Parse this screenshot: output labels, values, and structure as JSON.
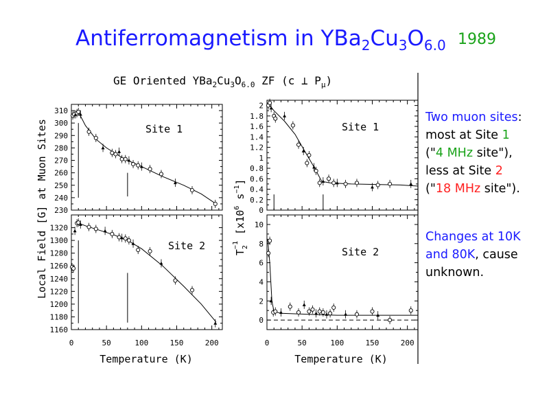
{
  "slide": {
    "title_main": "Antiferromagnetism in YBa",
    "title_sub1": "2",
    "title_mid1": "Cu",
    "title_sub2": "3",
    "title_mid2": "O",
    "title_sub3": "6.0",
    "year": "1989"
  },
  "notes": {
    "p1_a": "Two muon sites",
    "p1_b": ":",
    "p1_c": "most at Site ",
    "p1_d": "1",
    "p1_e": "(\"",
    "p1_f": "4 MHz",
    "p1_g": " site\"),",
    "p1_h": "less at Site ",
    "p1_i": "2",
    "p1_j": "(\"",
    "p1_k": "18 MHz",
    "p1_l": " site\").",
    "p2_a": "Changes at 10K",
    "p2_b": "and 80K",
    "p2_c": ", cause",
    "p2_d": "unknown."
  },
  "figure": {
    "title_a": "GE Oriented YBa",
    "title_b": "2",
    "title_c": "Cu",
    "title_d": "3",
    "title_e": "O",
    "title_f": "6.0",
    "title_g": " ZF (c ⊥ P",
    "title_h": "μ",
    "title_i": ")",
    "left_ylabel": "Local Field [G] at Muon Sites",
    "right_ylabel_a": "T",
    "right_ylabel_b": "2",
    "right_ylabel_c": "−1",
    "right_ylabel_d": " [x10",
    "right_ylabel_e": "6",
    "right_ylabel_f": " s",
    "right_ylabel_g": "−1",
    "right_ylabel_h": "]",
    "xlabel": "Temperature (K)"
  },
  "chart_data": [
    {
      "type": "scatter",
      "id": "field-site1",
      "label": "Site 1",
      "xlim": [
        0,
        215
      ],
      "ylim": [
        230,
        315
      ],
      "xticks": [
        0,
        50,
        100,
        150,
        200
      ],
      "yticks": [
        230,
        240,
        250,
        260,
        270,
        280,
        290,
        300,
        310
      ],
      "marker_lines_x": [
        [
          10,
          240,
          300
        ],
        [
          80,
          241,
          260
        ]
      ],
      "points": [
        [
          2,
          306
        ],
        [
          4,
          307
        ],
        [
          6,
          307
        ],
        [
          8,
          308
        ],
        [
          10,
          309
        ],
        [
          13,
          307
        ],
        [
          25,
          293
        ],
        [
          35,
          288
        ],
        [
          45,
          280
        ],
        [
          58,
          276
        ],
        [
          63,
          275
        ],
        [
          68,
          277
        ],
        [
          72,
          271
        ],
        [
          77,
          271
        ],
        [
          82,
          270
        ],
        [
          88,
          267
        ],
        [
          95,
          266
        ],
        [
          100,
          265
        ],
        [
          112,
          263
        ],
        [
          128,
          259
        ],
        [
          148,
          252
        ],
        [
          172,
          246
        ],
        [
          205,
          235
        ]
      ],
      "fit": [
        [
          1,
          305
        ],
        [
          10,
          309
        ],
        [
          20,
          298
        ],
        [
          35,
          287
        ],
        [
          50,
          280
        ],
        [
          70,
          273
        ],
        [
          80,
          270
        ],
        [
          100,
          265
        ],
        [
          130,
          257
        ],
        [
          160,
          250
        ],
        [
          185,
          243
        ],
        [
          206,
          235
        ]
      ]
    },
    {
      "type": "scatter",
      "id": "field-site2",
      "label": "Site 2",
      "xlim": [
        0,
        215
      ],
      "ylim": [
        1160,
        1340
      ],
      "xticks": [
        0,
        50,
        100,
        150,
        200
      ],
      "yticks": [
        1160,
        1180,
        1200,
        1220,
        1240,
        1260,
        1280,
        1300,
        1320
      ],
      "marker_lines_x": [
        [
          10,
          1170,
          1300
        ],
        [
          80,
          1171,
          1249
        ]
      ],
      "points": [
        [
          1,
          1258
        ],
        [
          3,
          1256
        ],
        [
          5,
          1315
        ],
        [
          8,
          1327
        ],
        [
          10,
          1328
        ],
        [
          13,
          1325
        ],
        [
          25,
          1321
        ],
        [
          35,
          1318
        ],
        [
          48,
          1315
        ],
        [
          58,
          1310
        ],
        [
          68,
          1305
        ],
        [
          72,
          1304
        ],
        [
          77,
          1303
        ],
        [
          82,
          1300
        ],
        [
          88,
          1295
        ],
        [
          95,
          1285
        ],
        [
          112,
          1283
        ],
        [
          128,
          1264
        ],
        [
          148,
          1237
        ],
        [
          172,
          1222
        ],
        [
          205,
          1170
        ]
      ],
      "fit": [
        [
          8,
          1328
        ],
        [
          20,
          1323
        ],
        [
          40,
          1316
        ],
        [
          60,
          1309
        ],
        [
          80,
          1300
        ],
        [
          100,
          1287
        ],
        [
          130,
          1260
        ],
        [
          160,
          1228
        ],
        [
          185,
          1200
        ],
        [
          206,
          1172
        ]
      ]
    },
    {
      "type": "scatter",
      "id": "relax-site1",
      "label": "Site 1",
      "xlim": [
        0,
        215
      ],
      "ylim": [
        0,
        2.1
      ],
      "xticks": [
        0,
        50,
        100,
        150,
        200
      ],
      "yticks": [
        0,
        0.2,
        0.4,
        0.6,
        0.8,
        1,
        1.2,
        1.4,
        1.6,
        1.8,
        2
      ],
      "ytick_labels": [
        "0",
        "0.2",
        "0.4",
        "0.6",
        "0.8",
        "1",
        "1.2",
        "1.4",
        "1.6",
        "1.8",
        "2"
      ],
      "marker_lines_x": [
        [
          10,
          0,
          0.3
        ],
        [
          80,
          0,
          0.3
        ]
      ],
      "points": [
        [
          2,
          2.0
        ],
        [
          4,
          2.05
        ],
        [
          6,
          1.95
        ],
        [
          10,
          1.8
        ],
        [
          12,
          1.75
        ],
        [
          25,
          1.8
        ],
        [
          37,
          1.62
        ],
        [
          45,
          1.25
        ],
        [
          52,
          1.13
        ],
        [
          57,
          0.9
        ],
        [
          60,
          1.05
        ],
        [
          67,
          0.82
        ],
        [
          70,
          0.75
        ],
        [
          75,
          0.52
        ],
        [
          80,
          0.55
        ],
        [
          88,
          0.6
        ],
        [
          95,
          0.52
        ],
        [
          100,
          0.52
        ],
        [
          112,
          0.5
        ],
        [
          128,
          0.52
        ],
        [
          150,
          0.44
        ],
        [
          158,
          0.48
        ],
        [
          175,
          0.5
        ],
        [
          205,
          0.5
        ]
      ],
      "fit": [
        [
          1,
          2.05
        ],
        [
          10,
          1.9
        ],
        [
          25,
          1.7
        ],
        [
          40,
          1.45
        ],
        [
          55,
          1.1
        ],
        [
          68,
          0.8
        ],
        [
          78,
          0.55
        ],
        [
          90,
          0.52
        ],
        [
          120,
          0.5
        ],
        [
          160,
          0.49
        ],
        [
          190,
          0.48
        ],
        [
          215,
          0.46
        ]
      ]
    },
    {
      "type": "scatter",
      "id": "relax-site2",
      "label": "Site 2",
      "xlim": [
        0,
        215
      ],
      "ylim": [
        -1,
        11
      ],
      "xticks": [
        0,
        50,
        100,
        150,
        200
      ],
      "yticks": [
        0,
        2,
        4,
        6,
        8,
        10
      ],
      "zero_dashed": true,
      "points": [
        [
          2,
          7.0
        ],
        [
          4,
          8.3
        ],
        [
          6,
          2.0
        ],
        [
          9,
          0.8
        ],
        [
          12,
          0.9
        ],
        [
          20,
          0.8
        ],
        [
          33,
          1.4
        ],
        [
          45,
          0.8
        ],
        [
          53,
          1.6
        ],
        [
          60,
          0.9
        ],
        [
          65,
          1.1
        ],
        [
          70,
          0.7
        ],
        [
          75,
          0.9
        ],
        [
          80,
          0.8
        ],
        [
          85,
          0.6
        ],
        [
          90,
          0.7
        ],
        [
          95,
          1.3
        ],
        [
          112,
          0.6
        ],
        [
          128,
          0.6
        ],
        [
          150,
          0.9
        ],
        [
          158,
          0.5
        ],
        [
          175,
          0.0
        ],
        [
          205,
          1.0
        ]
      ],
      "fit": [
        [
          1,
          8.5
        ],
        [
          4,
          6.0
        ],
        [
          7,
          2.0
        ],
        [
          10,
          0.9
        ],
        [
          20,
          0.7
        ],
        [
          60,
          0.6
        ],
        [
          100,
          0.5
        ],
        [
          150,
          0.5
        ],
        [
          215,
          0.5
        ]
      ]
    }
  ]
}
